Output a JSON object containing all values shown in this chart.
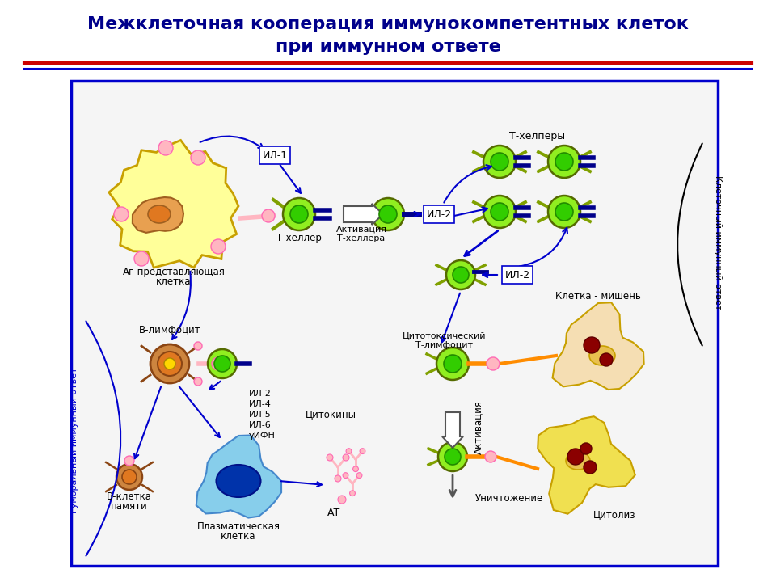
{
  "title_line1": "Межклеточная кооперация иммунокомпетентных клеток",
  "title_line2": "при иммунном ответе",
  "title_color": "#00008B",
  "title_fontsize": 16,
  "bg_color": "#FFFFFF",
  "box_edgecolor": "#0000CD",
  "red_line_color": "#CC0000",
  "blue_line_color": "#0000CD",
  "left_label": "Гуморальный иммунный ответ",
  "right_label": "Клеточный иммунный ответ",
  "label_color": "#0000CD",
  "green_cell_outer": "#90EE20",
  "green_cell_inner": "#32CD00",
  "green_arm": "#80A000",
  "blue_bar": "#00008B",
  "apc_fill": "#FFFF99",
  "apc_edge": "#C8A000",
  "apc_nuc_fill": "#E8A050",
  "apc_nuc2_fill": "#E07820",
  "pink": "#FFB6C1",
  "pink_edge": "#FF69B4",
  "blymph_fill": "#CD853F",
  "blymph_edge": "#8B4513",
  "blymph_nuc": "#E07820",
  "blymph_nuc2": "#FFD700",
  "plasma_fill": "#6699EE",
  "plasma_edge": "#0000AA",
  "plasma_inner": "#2244BB",
  "target_fill": "#F5DEB3",
  "target_edge": "#C8A000",
  "target_nuc": "#E8C050",
  "target_dark": "#8B2222",
  "cytolysis_fill": "#F0E060",
  "cytolysis_edge": "#C8A000"
}
